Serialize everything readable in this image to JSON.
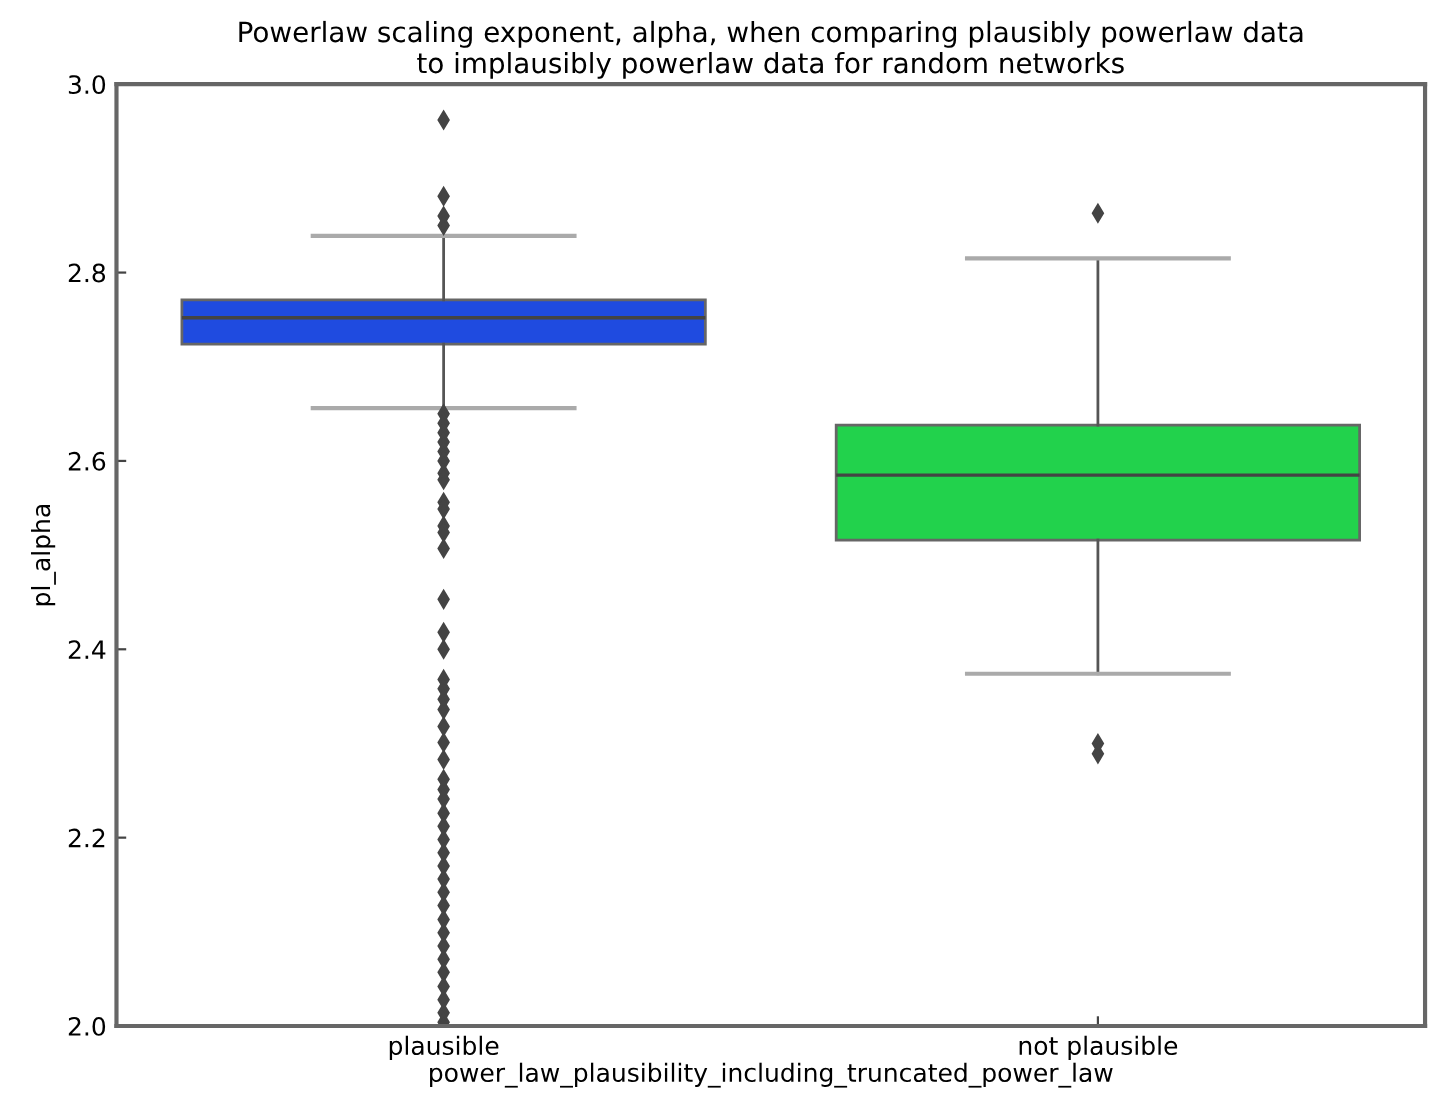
{
  "chart_data": {
    "type": "box",
    "title": "Powerlaw scaling exponent, alpha, when comparing plausibly powerlaw data\nto implausibly powerlaw data for random networks",
    "xlabel": "power_law_plausibility_including_truncated_power_law",
    "ylabel": "pl_alpha",
    "categories": [
      "plausible",
      "not plausible"
    ],
    "colors": [
      "#1f4be0",
      "#22d24c"
    ],
    "boxes": [
      {
        "low": 2.656,
        "q1": 2.724,
        "median": 2.752,
        "q3": 2.771,
        "high": 2.839,
        "outliers": [
          2.962,
          2.881,
          2.86,
          2.85,
          2.65,
          2.64,
          2.63,
          2.62,
          2.61,
          2.6,
          2.587,
          2.58,
          2.556,
          2.549,
          2.531,
          2.524,
          2.507,
          2.453,
          2.418,
          2.4,
          2.368,
          2.358,
          2.347,
          2.336,
          2.318,
          2.301,
          2.283,
          2.262,
          2.251,
          2.241,
          2.226,
          2.212,
          2.198,
          2.184,
          2.17,
          2.156,
          2.142,
          2.128,
          2.113,
          2.099,
          2.085,
          2.071,
          2.057,
          2.042,
          2.028,
          2.014,
          2.004
        ]
      },
      {
        "low": 2.374,
        "q1": 2.516,
        "median": 2.585,
        "q3": 2.638,
        "high": 2.815,
        "outliers": [
          2.863,
          2.3,
          2.289
        ]
      }
    ],
    "ylim": [
      2.0,
      3.0
    ],
    "yticks": [
      {
        "value": 2.0,
        "label": "2.0"
      },
      2.2,
      2.4,
      2.6,
      2.8,
      {
        "value": 3.0,
        "label": "3.0"
      }
    ],
    "grid": false,
    "marker": "diamond"
  }
}
